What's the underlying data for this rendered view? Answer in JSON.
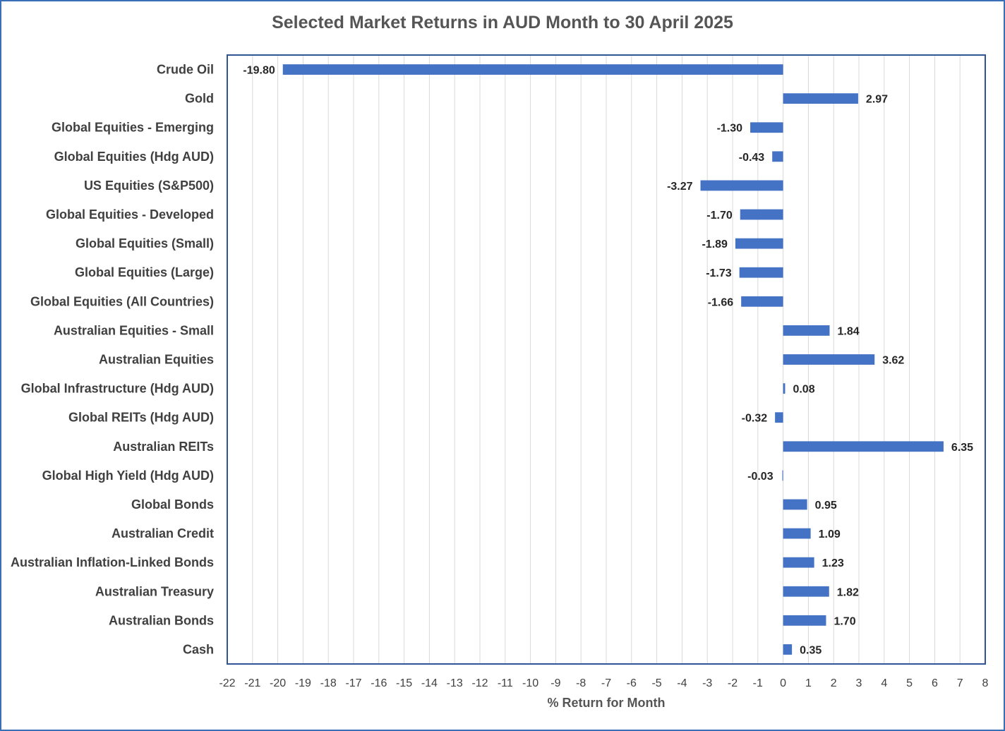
{
  "chart_data": {
    "type": "bar",
    "orientation": "horizontal",
    "title": "Selected Market Returns in AUD Month to 30 April 2025",
    "xlabel": "% Return for Month",
    "ylabel": "",
    "xlim": [
      -22,
      8
    ],
    "xticks": [
      "-22",
      "-21",
      "-20",
      "-19",
      "-18",
      "-17",
      "-16",
      "-15",
      "-14",
      "-13",
      "-12",
      "-11",
      "-10",
      "-9",
      "-8",
      "-7",
      "-6",
      "-5",
      "-4",
      "-3",
      "-2",
      "-1",
      "0",
      "1",
      "2",
      "3",
      "4",
      "5",
      "6",
      "7",
      "8"
    ],
    "grid": "vertical",
    "legend": "none",
    "bar_color": "#4472c4",
    "gridline_color": "#d9d9d9",
    "plot_border_color": "#2f5597",
    "categories": [
      "Crude Oil",
      "Gold",
      "Global Equities - Emerging",
      "Global Equities (Hdg AUD)",
      "US Equities (S&P500)",
      "Global Equities - Developed",
      "Global Equities (Small)",
      "Global Equities (Large)",
      "Global Equities (All Countries)",
      "Australian Equities - Small",
      "Australian Equities",
      "Global Infrastructure (Hdg AUD)",
      "Global REITs (Hdg AUD)",
      "Australian REITs",
      "Global High Yield (Hdg AUD)",
      "Global Bonds",
      "Australian Credit",
      "Australian Inflation-Linked Bonds",
      "Australian Treasury",
      "Australian Bonds",
      "Cash"
    ],
    "values": [
      -19.8,
      2.97,
      -1.3,
      -0.43,
      -3.27,
      -1.7,
      -1.89,
      -1.73,
      -1.66,
      1.84,
      3.62,
      0.08,
      -0.32,
      6.35,
      -0.03,
      0.95,
      1.09,
      1.23,
      1.82,
      1.7,
      0.35
    ],
    "value_labels": [
      "-19.80",
      "2.97",
      "-1.30",
      "-0.43",
      "-3.27",
      "-1.70",
      "-1.89",
      "-1.73",
      "-1.66",
      "1.84",
      "3.62",
      "0.08",
      "-0.32",
      "6.35",
      "-0.03",
      "0.95",
      "1.09",
      "1.23",
      "1.82",
      "1.70",
      "0.35"
    ]
  }
}
